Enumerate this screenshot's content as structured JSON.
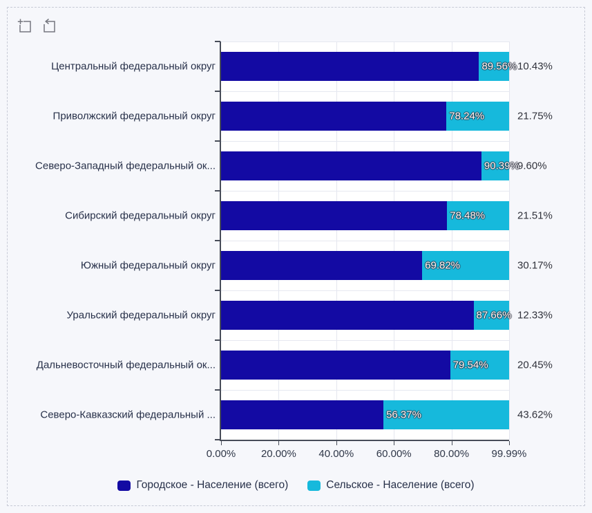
{
  "widget": {
    "background_color": "#f6f7fb",
    "frame_style": "dashed",
    "toolbar": {
      "buttons": [
        {
          "icon": "zoom-select-icon",
          "tooltip": ""
        },
        {
          "icon": "zoom-reset-icon",
          "tooltip": ""
        }
      ],
      "icon_color": "#75777f"
    }
  },
  "chart_data": {
    "type": "bar",
    "orientation": "horizontal",
    "stacked": true,
    "grid": true,
    "legend_position": "bottom",
    "categories": [
      "Центральный федеральный округ",
      "Приволжский федеральный округ",
      "Северо-Западный федеральный ок...",
      "Сибирский федеральный округ",
      "Южный федеральный округ",
      "Уральский федеральный округ",
      "Дальневосточный федеральный ок...",
      "Северо-Кавказский федеральный ..."
    ],
    "series": [
      {
        "name": "Городское - Население (всего)",
        "color": "#130aa3",
        "values": [
          89.56,
          78.24,
          90.39,
          78.48,
          69.82,
          87.66,
          79.54,
          56.37
        ],
        "labels": [
          "89.56%",
          "78.24%",
          "90.39%",
          "78.48%",
          "69.82%",
          "87.66%",
          "79.54%",
          "56.37%"
        ]
      },
      {
        "name": "Сельское - Население (всего)",
        "color": "#16b9dc",
        "values": [
          10.43,
          21.75,
          9.6,
          21.51,
          30.17,
          12.33,
          20.45,
          43.62
        ],
        "labels": [
          "10.43%",
          "21.75%",
          "9.60%",
          "21.51%",
          "30.17%",
          "12.33%",
          "20.45%",
          "43.62%"
        ]
      }
    ],
    "x_axis": {
      "tick_values": [
        0,
        20,
        40,
        60,
        80,
        99.99
      ],
      "tick_labels": [
        "0.00%",
        "20.00%",
        "40.00%",
        "60.00%",
        "80.00%",
        "99.99%"
      ]
    },
    "xlim": [
      0,
      100
    ],
    "xlabel": "",
    "ylabel": "",
    "title": ""
  }
}
